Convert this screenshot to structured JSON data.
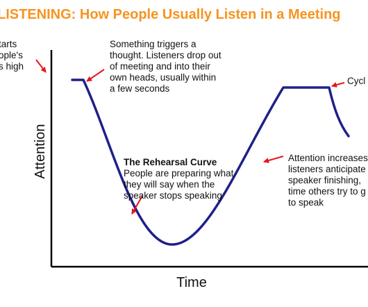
{
  "title": "LISTENING: How People Usually Listen in a Meeting",
  "axes": {
    "y_label": "Attention",
    "x_label": "Time"
  },
  "annotations": {
    "start": [
      "tarts",
      "ople's",
      "s high"
    ],
    "trigger": [
      "Something triggers a",
      "thought. Listeners drop out",
      "of meeting and into their",
      "own heads, usually within",
      "a few seconds"
    ],
    "rehearsal_heading": "The Rehearsal Curve",
    "rehearsal": [
      "People are preparing what",
      "they will say when the",
      "speaker stops speaking"
    ],
    "attention": [
      "Attention increases",
      "listeners anticipate",
      "speaker finishing,",
      "time others try to g",
      "to speak"
    ],
    "cycle": "Cycl"
  },
  "colors": {
    "title": "#f7931e",
    "curve": "#1f1f8a",
    "arrow": "#e8141c",
    "axis": "#000000"
  }
}
